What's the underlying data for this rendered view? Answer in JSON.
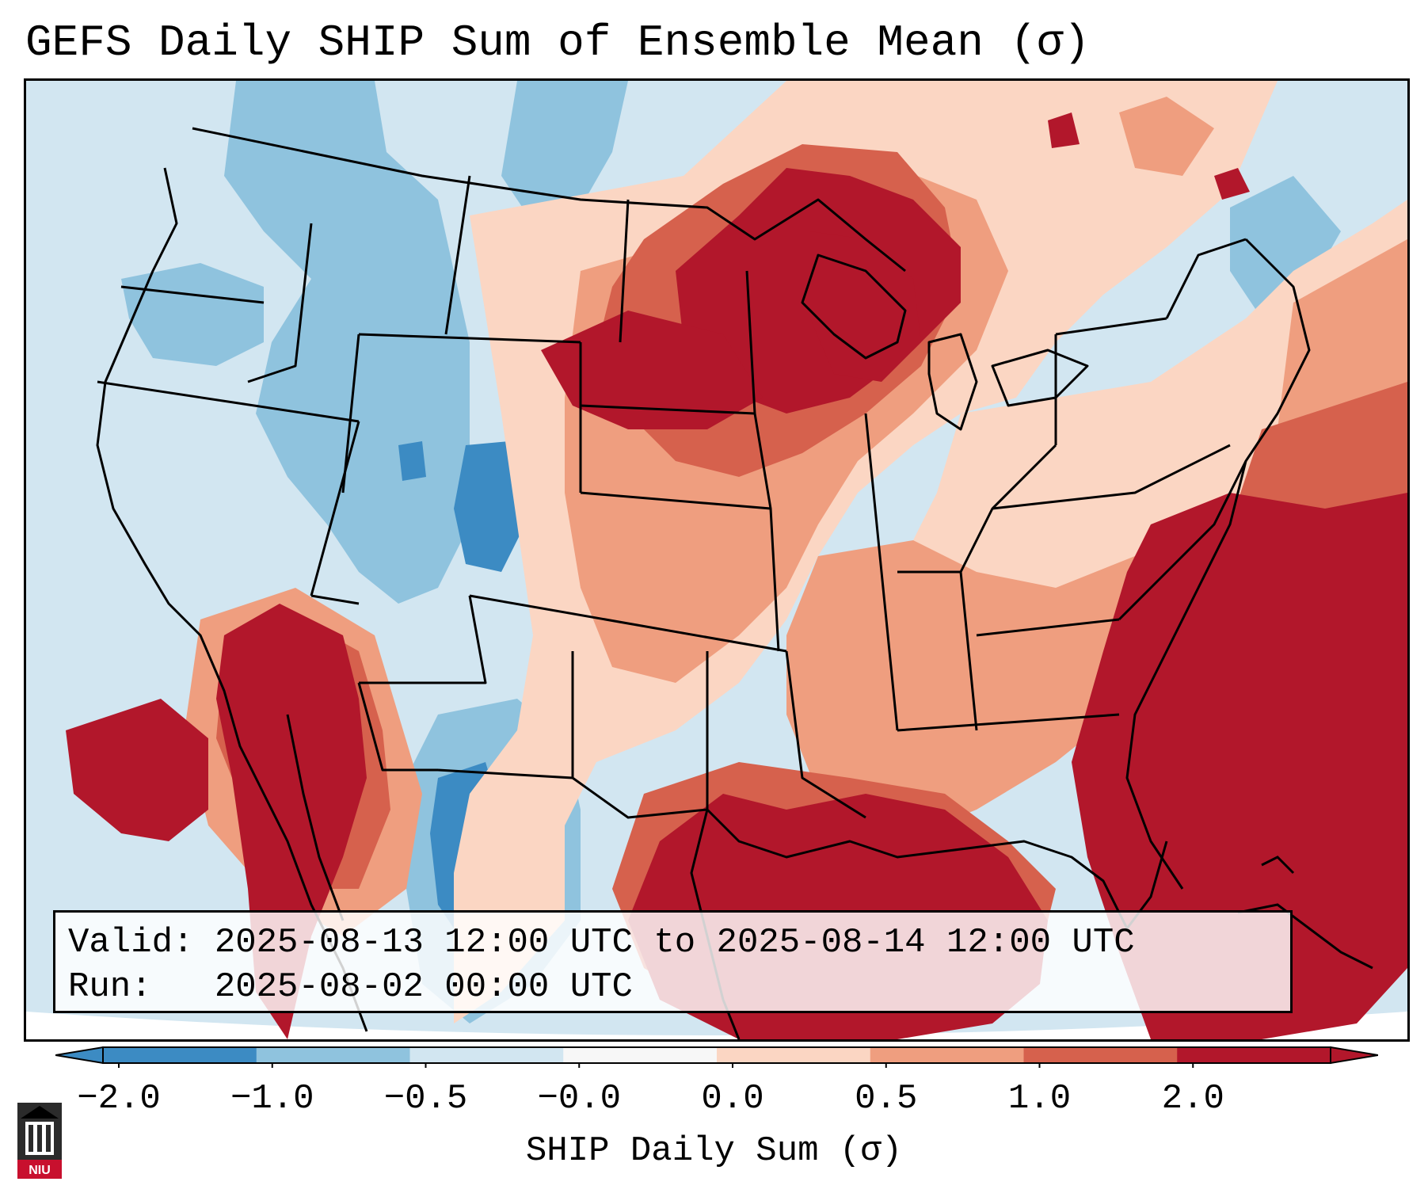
{
  "title": "GEFS Daily SHIP Sum of Ensemble Mean (σ)",
  "info": {
    "valid_label": "Valid:",
    "valid_value": "2025-08-13 12:00 UTC to 2025-08-14 12:00 UTC",
    "run_label": "Run:",
    "run_value": "2025-08-02 00:00 UTC"
  },
  "colorbar": {
    "label": "SHIP Daily Sum (σ)",
    "ticks": [
      "−2.0",
      "−1.0",
      "−0.5",
      "−0.0",
      "0.0",
      "0.5",
      "1.0",
      "2.0"
    ],
    "colors": [
      "#3c8bc3",
      "#8fc3de",
      "#d2e6f1",
      "#f7f7f7",
      "#fbd6c3",
      "#ef9e7f",
      "#d6614d",
      "#b2172b"
    ],
    "extend": "both"
  },
  "logo": {
    "text": "NIU",
    "icon": "niu-logo-icon"
  },
  "map": {
    "projection": "lambert-conformal",
    "region": "CONUS",
    "variable": "SHIP daily sum anomaly",
    "colors": {
      "ocean": "#d2e6f1",
      "strong_neg": "#3c8bc3",
      "mod_neg": "#8fc3de",
      "weak_pos": "#fbd6c3",
      "mod_pos": "#ef9e7f",
      "strong_pos": "#d6614d",
      "extreme_pos": "#b2172b"
    }
  }
}
